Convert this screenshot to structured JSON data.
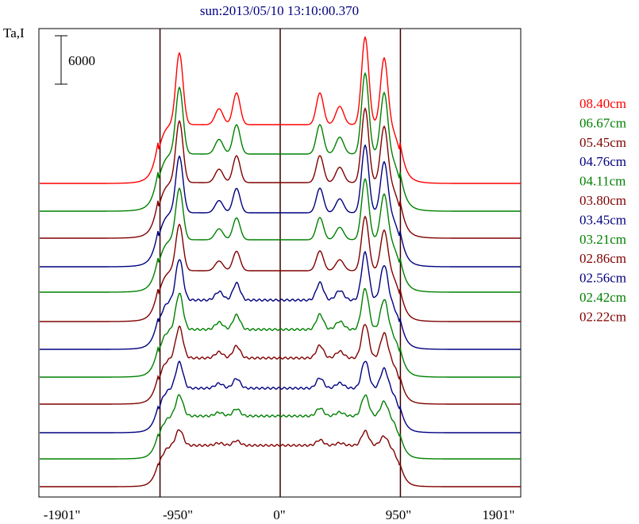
{
  "chart_data": {
    "type": "line",
    "title": "sun:2013/05/10 13:10:00.370",
    "ylabel": "Ta,I",
    "scale_bar": "6000",
    "x_ticks": [
      "-1901\"",
      "-950\"",
      "0\"",
      "950\"",
      "1901\""
    ],
    "x_tick_values": [
      -1901,
      -950,
      0,
      950,
      1901
    ],
    "xlim": [
      -1901,
      1901
    ],
    "vertical_markers": [
      -950,
      0,
      950
    ],
    "series": [
      {
        "name": "08.40cm",
        "color": "#ff0000"
      },
      {
        "name": "06.67cm",
        "color": "#008000"
      },
      {
        "name": "05.45cm",
        "color": "#800000"
      },
      {
        "name": "04.76cm",
        "color": "#000080"
      },
      {
        "name": "04.11cm",
        "color": "#008000"
      },
      {
        "name": "03.80cm",
        "color": "#800000"
      },
      {
        "name": "03.45cm",
        "color": "#000080"
      },
      {
        "name": "03.21cm",
        "color": "#008000"
      },
      {
        "name": "02.86cm",
        "color": "#800000"
      },
      {
        "name": "02.56cm",
        "color": "#000080"
      },
      {
        "name": "02.42cm",
        "color": "#008000"
      },
      {
        "name": "02.22cm",
        "color": "#800000"
      }
    ]
  }
}
